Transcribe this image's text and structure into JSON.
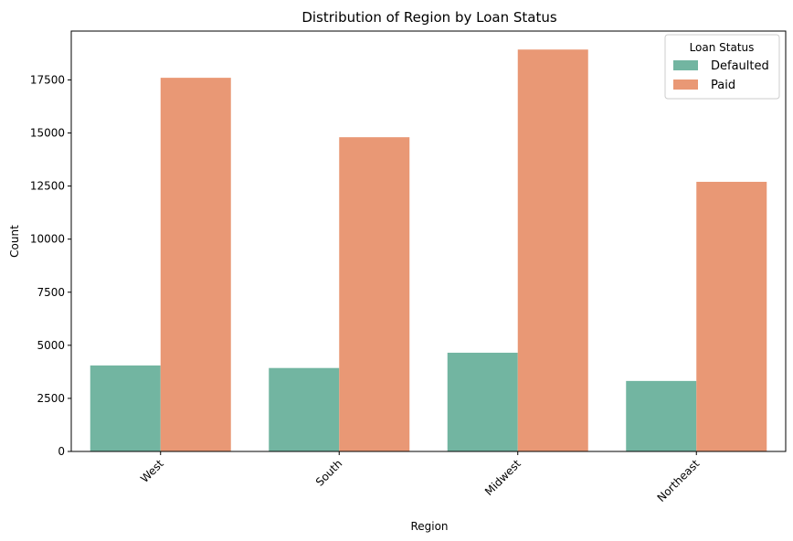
{
  "chart_data": {
    "type": "bar",
    "title": "Distribution of Region by Loan Status",
    "xlabel": "Region",
    "ylabel": "Count",
    "categories": [
      "West",
      "South",
      "Midwest",
      "Northeast"
    ],
    "series": [
      {
        "name": "Defaulted",
        "color": "#72b5a1",
        "values": [
          4050,
          3930,
          4650,
          3320
        ]
      },
      {
        "name": "Paid",
        "color": "#e99875",
        "values": [
          17600,
          14800,
          18930,
          12700
        ]
      }
    ],
    "ylim": [
      0,
      19800
    ],
    "yticks": [
      0,
      2500,
      5000,
      7500,
      10000,
      12500,
      15000,
      17500
    ],
    "grid": false,
    "legend": {
      "title": "Loan Status",
      "placement": "top-right"
    }
  }
}
